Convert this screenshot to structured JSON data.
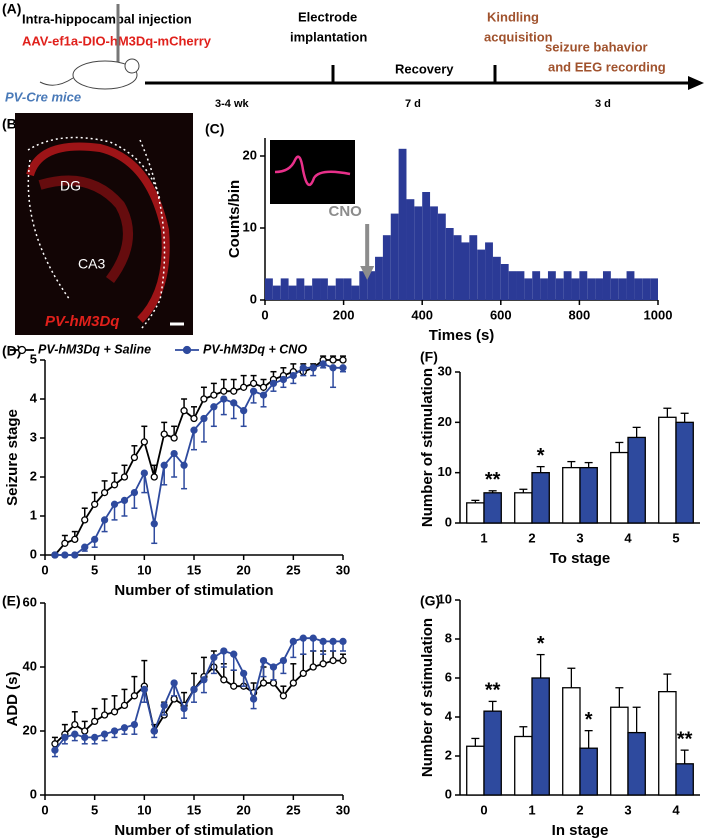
{
  "timeline": {
    "panel": "(A)",
    "injection": "Intra-hippocampal injection",
    "virus": "AAV-ef1a-DIO-hM3Dq-mCherry",
    "mice": "PV-Cre mice",
    "electrode_lines": [
      "Electrode",
      "implantation"
    ],
    "kindling_lines": [
      "Kindling",
      "acquisition"
    ],
    "recording_lines": [
      "seizure bahavior",
      "and EEG recording"
    ],
    "recovery": "Recovery",
    "durations": [
      "3-4 wk",
      "7 d",
      "3 d"
    ]
  },
  "image_panel": {
    "panel": "(B)",
    "region1": "DG",
    "region2": "CA3",
    "label": "PV-hM3Dq"
  },
  "chart_data": [
    {
      "type": "histogram",
      "panel": "(C)",
      "xlabel": "Times (s)",
      "ylabel": "Counts/bin",
      "annotation": "CNO",
      "color": "#2b3a96",
      "bins": [
        0,
        20,
        40,
        60,
        80,
        100,
        120,
        140,
        160,
        180,
        200,
        220,
        240,
        260,
        280,
        300,
        320,
        340,
        360,
        380,
        400,
        420,
        440,
        460,
        480,
        500,
        520,
        540,
        560,
        580,
        600,
        620,
        640,
        660,
        680,
        700,
        720,
        740,
        760,
        780,
        800,
        820,
        840,
        860,
        880,
        900,
        920,
        940,
        960,
        980,
        1000
      ],
      "values": [
        3,
        2,
        3,
        2,
        3,
        2,
        3,
        3,
        2,
        3,
        3,
        2,
        4,
        4,
        6,
        9,
        12,
        21,
        14,
        13,
        15,
        13,
        12,
        10,
        9,
        8,
        9,
        7,
        8,
        6,
        5,
        4,
        4,
        3,
        4,
        3,
        4,
        3,
        4,
        3,
        4,
        3,
        3,
        4,
        3,
        3,
        4,
        3,
        3,
        3
      ],
      "xlim": [
        0,
        1000
      ],
      "xticks": [
        0,
        200,
        400,
        600,
        800,
        1000
      ],
      "ylim": [
        0,
        22.5
      ],
      "yticks": [
        0,
        10,
        20
      ]
    },
    {
      "type": "line",
      "panel": "(D)",
      "xlabel": "Number of stimulation",
      "ylabel": "Seizure stage",
      "legend": "top",
      "x": [
        1,
        2,
        3,
        4,
        5,
        6,
        7,
        8,
        9,
        10,
        11,
        12,
        13,
        14,
        15,
        16,
        17,
        18,
        19,
        20,
        21,
        22,
        23,
        24,
        25,
        26,
        27,
        28,
        29,
        30
      ],
      "series": [
        {
          "name": "PV-hM3Dq + Saline",
          "color": "#000000",
          "marker_fill": "#ffffff",
          "errorbar": "up",
          "values": [
            0,
            0.3,
            0.4,
            0.9,
            1.3,
            1.6,
            1.8,
            2.0,
            2.5,
            2.9,
            2.0,
            3.1,
            3.0,
            3.7,
            3.5,
            4.0,
            4.1,
            4.2,
            4.2,
            4.3,
            4.4,
            4.3,
            4.5,
            4.6,
            4.7,
            4.7,
            4.8,
            5,
            5,
            5
          ],
          "errors": [
            0,
            0.2,
            0.2,
            0.3,
            0.3,
            0.3,
            0.3,
            0.3,
            0.3,
            0.4,
            0.3,
            0.3,
            0.3,
            0.3,
            0.3,
            0.3,
            0.3,
            0.3,
            0.3,
            0.3,
            0.2,
            0.2,
            0.2,
            0.2,
            0.2,
            0.2,
            0.1,
            0.1,
            0.1,
            0.1
          ]
        },
        {
          "name": "PV-hM3Dq + CNO",
          "color": "#2e4a9e",
          "marker_fill": "#2e4a9e",
          "errorbar": "down",
          "values": [
            0,
            0,
            0,
            0.2,
            0.4,
            0.9,
            1.3,
            1.4,
            1.6,
            2.1,
            0.8,
            2.3,
            2.6,
            2.3,
            3.2,
            3.5,
            3.8,
            4.0,
            3.9,
            3.7,
            4.2,
            4.1,
            4.4,
            4.5,
            4.6,
            4.8,
            4.8,
            4.9,
            4.8,
            4.8
          ],
          "errors": [
            0,
            0,
            0,
            0.1,
            0.2,
            0.3,
            0.4,
            0.4,
            0.4,
            0.5,
            0.5,
            0.5,
            0.6,
            0.6,
            0.5,
            0.6,
            0.5,
            0.4,
            0.4,
            0.4,
            0.3,
            0.3,
            0.2,
            0.2,
            0.2,
            0.2,
            0.2,
            0.1,
            0.5,
            0.1
          ]
        }
      ],
      "xlim": [
        0,
        30
      ],
      "xticks": [
        0,
        5,
        10,
        15,
        20,
        25,
        30
      ],
      "ylim": [
        0,
        5
      ],
      "yticks": [
        0,
        1,
        2,
        3,
        4,
        5
      ]
    },
    {
      "type": "line",
      "panel": "(E)",
      "xlabel": "Number of stimulation",
      "ylabel": "ADD (s)",
      "x": [
        1,
        2,
        3,
        4,
        5,
        6,
        7,
        8,
        9,
        10,
        11,
        12,
        13,
        14,
        15,
        16,
        17,
        18,
        19,
        20,
        21,
        22,
        23,
        24,
        25,
        26,
        27,
        28,
        29,
        30
      ],
      "series": [
        {
          "name": "PV-hM3Dq + Saline",
          "color": "#000000",
          "marker_fill": "#ffffff",
          "errorbar": "up",
          "values": [
            16,
            19,
            22,
            20,
            23,
            25,
            26,
            28,
            31,
            34,
            20,
            25,
            30,
            28,
            33,
            37,
            40,
            36,
            34,
            34,
            32,
            35,
            35,
            31,
            35,
            38,
            40,
            41,
            42,
            42
          ],
          "errors": [
            2,
            3,
            4,
            3,
            4,
            5,
            5,
            5,
            6,
            8,
            2,
            4,
            5,
            4,
            5,
            6,
            5,
            5,
            5,
            4,
            3,
            5,
            5,
            3,
            6,
            6,
            5,
            4,
            3,
            2
          ]
        },
        {
          "name": "PV-hM3Dq + CNO",
          "color": "#2e4a9e",
          "marker_fill": "#2e4a9e",
          "errorbar": "down",
          "values": [
            14,
            18,
            19,
            18,
            18,
            19,
            20,
            21,
            22,
            33,
            20,
            28,
            35,
            27,
            33,
            36,
            43,
            45,
            44,
            38,
            30,
            42,
            40,
            42,
            48,
            49,
            49,
            48,
            48,
            48
          ],
          "errors": [
            2,
            2,
            2,
            2,
            2,
            2,
            2,
            2,
            3,
            4,
            2,
            3,
            4,
            3,
            4,
            4,
            5,
            5,
            5,
            4,
            3,
            5,
            4,
            4,
            5,
            5,
            4,
            4,
            3,
            3
          ]
        }
      ],
      "xlim": [
        0,
        30
      ],
      "xticks": [
        0,
        5,
        10,
        15,
        20,
        25,
        30
      ],
      "ylim": [
        0,
        60
      ],
      "yticks": [
        0,
        20,
        40,
        60
      ]
    },
    {
      "type": "bar",
      "panel": "(F)",
      "xlabel": "To stage",
      "ylabel": "Number of stimulation",
      "categories": [
        "1",
        "2",
        "3",
        "4",
        "5"
      ],
      "series": [
        {
          "name": "PV-hM3Dq + Saline",
          "color": "#ffffff",
          "edgecolor": "#000000",
          "values": [
            4,
            6,
            11,
            14,
            21
          ],
          "errors": [
            0.5,
            0.7,
            1.2,
            2,
            1.8
          ],
          "significance": [
            null,
            null,
            null,
            null,
            null
          ]
        },
        {
          "name": "PV-hM3Dq + CNO",
          "color": "#2e4a9e",
          "edgecolor": "#000000",
          "values": [
            6,
            10,
            11,
            17,
            20
          ],
          "errors": [
            0.4,
            1.2,
            1,
            2,
            1.8
          ],
          "significance": [
            "**",
            "*",
            null,
            null,
            null
          ]
        }
      ],
      "ylim": [
        0,
        30
      ],
      "yticks": [
        0,
        10,
        20,
        30
      ]
    },
    {
      "type": "bar",
      "panel": "(G)",
      "xlabel": "In stage",
      "ylabel": "Number of stimulation",
      "categories": [
        "0",
        "1",
        "2",
        "3",
        "4"
      ],
      "series": [
        {
          "name": "PV-hM3Dq + Saline",
          "color": "#ffffff",
          "edgecolor": "#000000",
          "values": [
            2.5,
            3,
            5.5,
            4.5,
            5.3
          ],
          "errors": [
            0.4,
            0.5,
            1,
            1,
            0.9
          ],
          "significance": [
            null,
            null,
            null,
            null,
            null
          ]
        },
        {
          "name": "PV-hM3Dq + CNO",
          "color": "#2e4a9e",
          "edgecolor": "#000000",
          "values": [
            4.3,
            6,
            2.4,
            3.2,
            1.6
          ],
          "errors": [
            0.5,
            1.2,
            0.9,
            1.3,
            0.7
          ],
          "significance": [
            "**",
            "*",
            "*",
            null,
            "**"
          ]
        }
      ],
      "ylim": [
        0,
        10
      ],
      "yticks": [
        0,
        2,
        4,
        6,
        8,
        10
      ]
    }
  ]
}
